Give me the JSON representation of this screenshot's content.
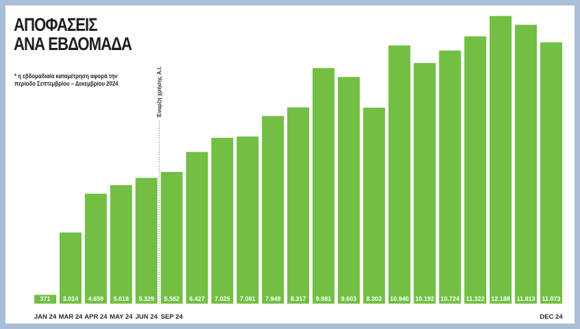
{
  "title_lines": [
    "ΑΠΟΦΑΣΕΙΣ",
    "ΑΝΑ ΕΒΔΟΜΑΔΑ"
  ],
  "note_lines": [
    "* η εβδομαδιαία καταμέτρηση αφορά την",
    "περίοδο Σεπτεμβρίου – Δεκεμβρίου 2024"
  ],
  "colors": {
    "bar": "#72bf44",
    "label": "#ffffff",
    "axis_text": "#2a2a2a",
    "marker": "#777777",
    "frame": "#a9bfd6"
  },
  "chart_data": {
    "type": "bar",
    "title": "ΑΠΟΦΑΣΕΙΣ ΑΝΑ ΕΒΔΟΜΑΔΑ",
    "values": [
      371,
      3014,
      4659,
      5018,
      5329,
      5582,
      6427,
      7025,
      7081,
      7949,
      8317,
      9981,
      9603,
      8302,
      10940,
      10192,
      10724,
      11322,
      12188,
      11813,
      11073
    ],
    "value_labels": [
      "371",
      "3.014",
      "4.659",
      "5.018",
      "5.329",
      "5.582",
      "6.427",
      "7.025",
      "7.081",
      "7.949",
      "8.317",
      "9.981",
      "9.603",
      "8.302",
      "10.940",
      "10.192",
      "10.724",
      "11.322",
      "12.188",
      "11.813",
      "11.073"
    ],
    "x_labels": [
      "JAN 24",
      "MAR 24",
      "APR 24",
      "MAY 24",
      "JUN 24",
      "SEP 24",
      "",
      "",
      "",
      "",
      "",
      "",
      "",
      "",
      "",
      "",
      "",
      "",
      "",
      "",
      "DEC 24"
    ],
    "marker_text": "Έναρξη χρήσης Α.Ι.",
    "marker_between_index": [
      4,
      5
    ],
    "ylim": [
      0,
      12400
    ],
    "grid": false,
    "legend": "none"
  }
}
